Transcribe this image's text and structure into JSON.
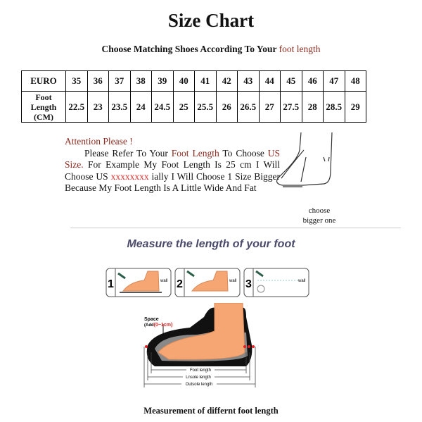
{
  "title": "Size Chart",
  "subtitle": {
    "prefix": "Choose Matching Shoes According To Your ",
    "highlight": "foot length"
  },
  "table": {
    "row1_header": "EURO",
    "row2_header": [
      "Foot",
      "Length",
      "(CM)"
    ],
    "euro": [
      "35",
      "36",
      "37",
      "38",
      "39",
      "40",
      "41",
      "42",
      "43",
      "44",
      "45",
      "46",
      "47",
      "48"
    ],
    "foot_length_cm": [
      "22.5",
      "23",
      "23.5",
      "24",
      "24.5",
      "25",
      "25.5",
      "26",
      "26.5",
      "27",
      "27.5",
      "28",
      "28.5",
      "29"
    ]
  },
  "attention": {
    "heading": "Attention Please !",
    "p1": "Please Refer To Your ",
    "p1_hl": "Foot Length",
    "p2": " To Choose ",
    "p2_hl": "US Size.",
    "p3": " For Example My Foot Length Is 25 cm I Will Choose US ",
    "p3_x": "xxxxxxxx",
    "p4": " ially I Will Choose 1 Size Bigger Because My Foot Length Is A Little Wide And Fat"
  },
  "choose_note": [
    "choose",
    "bigger one"
  ],
  "measure_heading": "Measure the length of your foot",
  "steps": [
    {
      "num": "1",
      "label": "wall"
    },
    {
      "num": "2",
      "label": "wall"
    },
    {
      "num": "3",
      "label": "wall"
    }
  ],
  "diagram": {
    "space": "Space",
    "add_prefix": "(Add",
    "add_value": "(0~1cm)",
    "foot_length": "Foot length",
    "insole_length": "Lnsole length",
    "outsole_length": "Outsole length"
  },
  "caption": "Measurement of differnt foot length",
  "colors": {
    "highlight": "#8b2a1e",
    "skin": "#f5a673",
    "accent_red": "#e02020"
  }
}
